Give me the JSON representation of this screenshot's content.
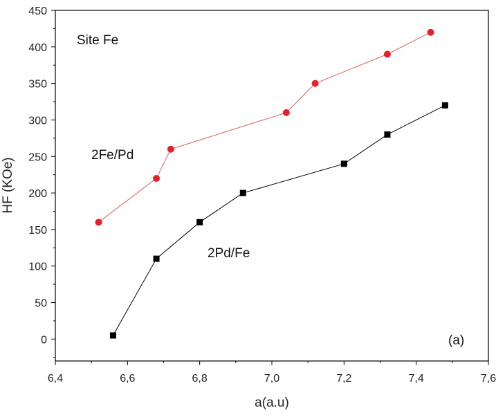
{
  "chart_data": {
    "type": "line",
    "xlabel": "a(a.u)",
    "ylabel": "HF (KOe)",
    "xlim": [
      6.4,
      7.6
    ],
    "ylim": [
      -30,
      450
    ],
    "x_ticks": [
      6.4,
      6.6,
      6.8,
      7.0,
      7.2,
      7.4,
      7.6
    ],
    "x_tick_labels": [
      "6,4",
      "6,6",
      "6,8",
      "7,0",
      "7,2",
      "7,4",
      "7,6"
    ],
    "y_ticks": [
      0,
      50,
      100,
      150,
      200,
      250,
      300,
      350,
      400,
      450
    ],
    "y_tick_labels": [
      "0",
      "50",
      "100",
      "150",
      "200",
      "250",
      "300",
      "350",
      "400",
      "450"
    ],
    "grid": false,
    "series": [
      {
        "name": "2Fe/Pd",
        "marker": "circle",
        "color": "#e8202a",
        "line_color": "#e06060",
        "x": [
          6.52,
          6.68,
          6.72,
          7.04,
          7.12,
          7.32,
          7.44
        ],
        "y": [
          160,
          220,
          260,
          310,
          350,
          390,
          420
        ]
      },
      {
        "name": "2Pd/Fe",
        "marker": "square",
        "color": "#000000",
        "line_color": "#000000",
        "x": [
          6.56,
          6.68,
          6.8,
          6.92,
          7.2,
          7.32,
          7.48
        ],
        "y": [
          5,
          110,
          160,
          200,
          240,
          280,
          320
        ]
      }
    ],
    "annotations": {
      "site_label": "Site Fe",
      "panel_label": "(a)"
    }
  }
}
